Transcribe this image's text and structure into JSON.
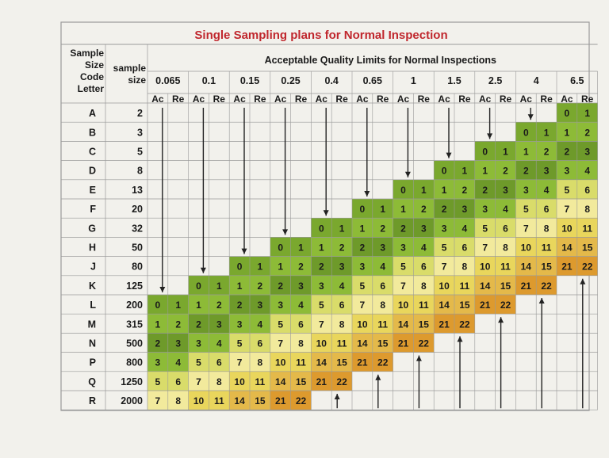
{
  "title": "Single Sampling plans for Normal Inspection",
  "header": {
    "code_label": [
      "Sample",
      "Size",
      "Code",
      "Letter"
    ],
    "size_label": [
      "sample",
      "size"
    ],
    "aql_title": "Acceptable Quality Limits for Normal Inspections",
    "aql_levels": [
      "0.065",
      "0.1",
      "0.15",
      "0.25",
      "0.4",
      "0.65",
      "1",
      "1.5",
      "2.5",
      "4",
      "6.5"
    ],
    "ac_label": "Ac",
    "re_label": "Re"
  },
  "rows": [
    {
      "code": "A",
      "size": "2"
    },
    {
      "code": "B",
      "size": "3"
    },
    {
      "code": "C",
      "size": "5"
    },
    {
      "code": "D",
      "size": "8"
    },
    {
      "code": "E",
      "size": "13"
    },
    {
      "code": "F",
      "size": "20"
    },
    {
      "code": "G",
      "size": "32"
    },
    {
      "code": "H",
      "size": "50"
    },
    {
      "code": "J",
      "size": "80"
    },
    {
      "code": "K",
      "size": "125"
    },
    {
      "code": "L",
      "size": "200"
    },
    {
      "code": "M",
      "size": "315"
    },
    {
      "code": "N",
      "size": "500"
    },
    {
      "code": "P",
      "size": "800"
    },
    {
      "code": "Q",
      "size": "1250"
    },
    {
      "code": "R",
      "size": "2000"
    }
  ],
  "ac_re_sequence": [
    [
      0,
      1
    ],
    [
      1,
      2
    ],
    [
      2,
      3
    ],
    [
      3,
      4
    ],
    [
      5,
      6
    ],
    [
      7,
      8
    ],
    [
      10,
      11
    ],
    [
      14,
      15
    ],
    [
      21,
      22
    ]
  ],
  "first_plan_row": [
    10,
    9,
    8,
    7,
    6,
    5,
    4,
    3,
    2,
    1,
    0
  ],
  "colors": {
    "paper": "#f2f1ec",
    "title": "#c0272d",
    "grid": "#9a9a9a",
    "text": "#1a1a1a",
    "green_dark": "#6e9a2a",
    "green_light": "#95bf3c",
    "yellow_light": "#f2ea9c",
    "yellow": "#e9d65c",
    "orange": "#dd9a2e"
  }
}
